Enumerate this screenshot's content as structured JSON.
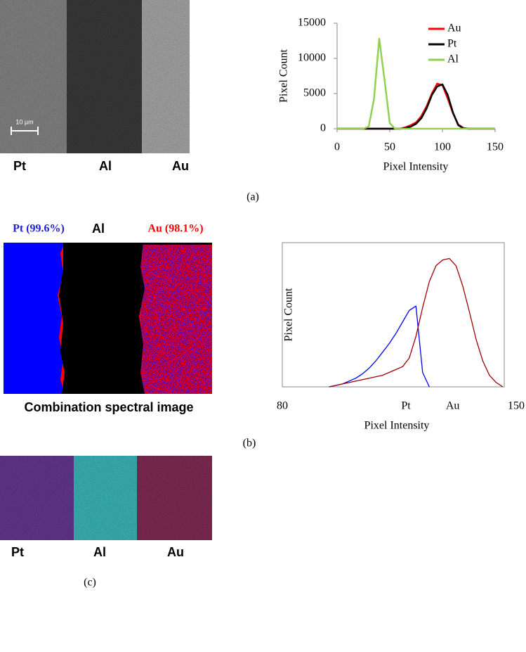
{
  "panel_a": {
    "labels": [
      "Pt",
      "Al",
      "Au"
    ],
    "scale_bar": "10 µm",
    "caption": "(a)"
  },
  "panel_b": {
    "labels": [
      "Pt (99.6%)",
      "Al",
      "Au (98.1%)"
    ],
    "image_title": "Combination spectral image",
    "caption": "(b)"
  },
  "panel_c": {
    "labels": [
      "Pt",
      "Al",
      "Au"
    ],
    "caption": "(c)"
  },
  "chart_data": [
    {
      "type": "line",
      "xlabel": "Pixel Intensity",
      "ylabel": "Pixel Count",
      "x": [
        0,
        5,
        10,
        15,
        20,
        25,
        30,
        35,
        40,
        45,
        50,
        55,
        60,
        65,
        70,
        75,
        80,
        85,
        90,
        95,
        100,
        105,
        110,
        115,
        120,
        125,
        130,
        135,
        140,
        145,
        150
      ],
      "series": [
        {
          "name": "Au",
          "color": "#ff0000",
          "values": [
            0,
            0,
            0,
            0,
            0,
            0,
            0,
            0,
            0,
            0,
            0,
            0,
            0,
            200,
            500,
            900,
            1800,
            3200,
            5000,
            6400,
            6200,
            4300,
            2200,
            600,
            100,
            0,
            0,
            0,
            0,
            0,
            0
          ]
        },
        {
          "name": "Pt",
          "color": "#000000",
          "values": [
            0,
            0,
            0,
            0,
            0,
            0,
            0,
            0,
            0,
            0,
            0,
            0,
            0,
            100,
            300,
            700,
            1500,
            2900,
            4800,
            6000,
            6300,
            4800,
            2300,
            500,
            50,
            0,
            0,
            0,
            0,
            0,
            0
          ]
        },
        {
          "name": "Al",
          "color": "#92d050",
          "values": [
            0,
            0,
            0,
            0,
            0,
            0,
            300,
            4200,
            12800,
            7000,
            800,
            0,
            0,
            0,
            0,
            0,
            0,
            0,
            0,
            0,
            0,
            0,
            0,
            0,
            0,
            0,
            0,
            0,
            0,
            0,
            0
          ]
        }
      ],
      "xlim": [
        0,
        150
      ],
      "xticks": [
        0,
        50,
        100,
        150
      ],
      "ylim": [
        0,
        15000
      ],
      "yticks": [
        0,
        5000,
        10000,
        15000
      ],
      "frame": false
    },
    {
      "type": "line",
      "xlabel": "Pixel Intensity",
      "ylabel": "Pixel Count",
      "x": [
        94,
        96,
        98,
        100,
        102,
        104,
        106,
        108,
        110,
        112,
        114,
        116,
        118,
        120,
        122,
        124,
        126,
        128,
        130,
        132,
        134,
        136,
        138,
        140,
        142,
        144,
        146
      ],
      "series": [
        {
          "color": "#0000ff",
          "values": [
            0,
            1,
            2,
            4,
            6,
            9,
            13,
            18,
            24,
            30,
            37,
            45,
            53,
            56,
            10,
            0,
            null,
            null,
            null,
            null,
            null,
            null,
            null,
            null,
            null,
            null,
            null
          ]
        },
        {
          "color": "#a00000",
          "values": [
            0,
            1,
            2,
            3,
            4,
            5,
            6,
            7,
            8,
            10,
            12,
            14,
            20,
            35,
            55,
            73,
            84,
            88,
            89,
            84,
            70,
            52,
            33,
            18,
            8,
            3,
            0
          ]
        }
      ],
      "xlim": [
        80,
        150
      ],
      "xticks": [
        80,
        {
          "value": 117,
          "label": "Pt"
        },
        {
          "value": 131,
          "label": "Au"
        },
        150
      ],
      "ylim": [
        0,
        100
      ],
      "frame": true
    }
  ]
}
